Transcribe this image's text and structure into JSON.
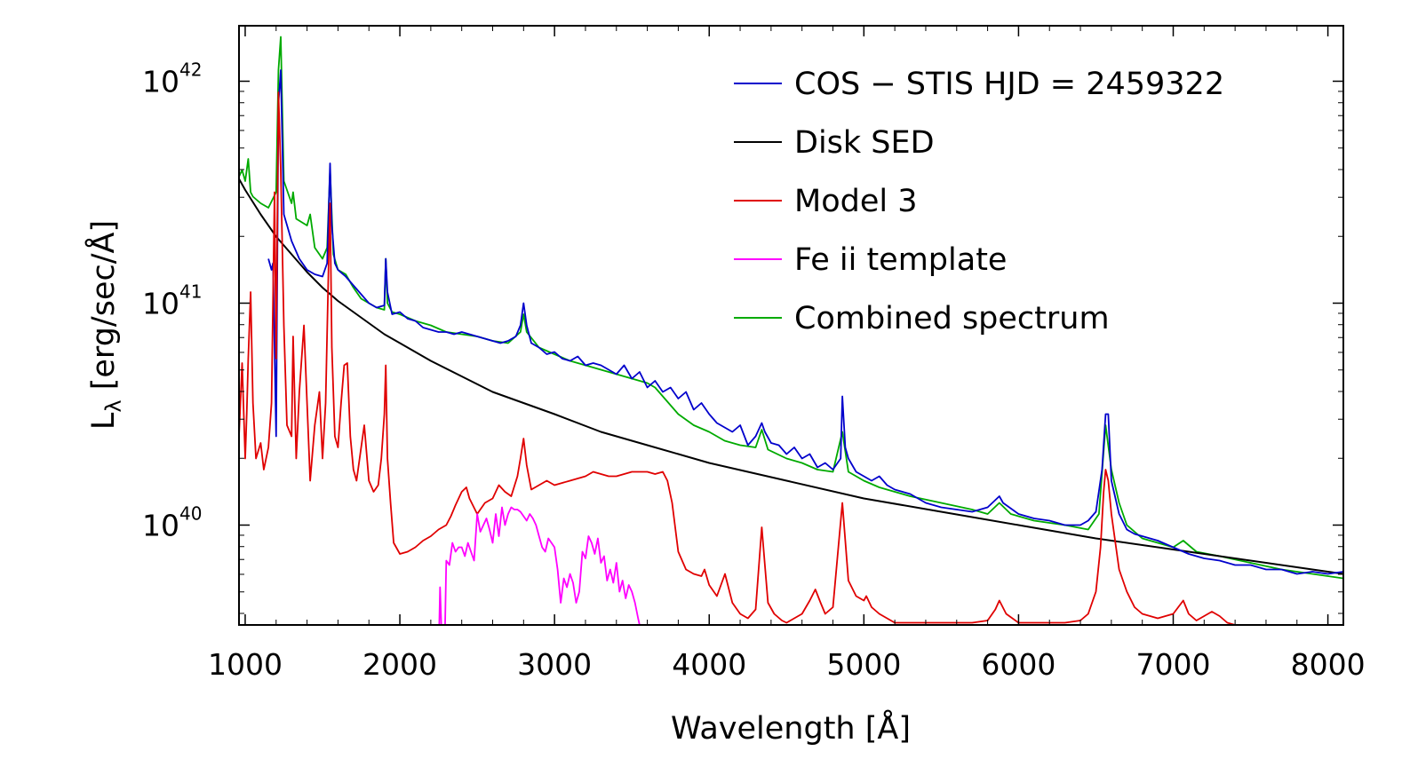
{
  "chart_data": {
    "type": "line",
    "xlabel": "Wavelength [Å]",
    "ylabel_main": "L",
    "ylabel_sub": "λ",
    "ylabel_rest": " [erg/sec/Å]",
    "xlim": [
      960,
      8100
    ],
    "ylim_log10": [
      39.55,
      42.25
    ],
    "y_scale": "log",
    "grid": false,
    "legend_position": "top-right",
    "x_ticks": [
      1000,
      2000,
      3000,
      4000,
      5000,
      6000,
      7000,
      8000
    ],
    "x_tick_labels": [
      "1000",
      "2000",
      "3000",
      "4000",
      "5000",
      "6000",
      "7000",
      "8000"
    ],
    "y_ticks": [
      {
        "value_log10": 40,
        "base": "10",
        "exp": "40"
      },
      {
        "value_log10": 41,
        "base": "10",
        "exp": "41"
      },
      {
        "value_log10": 42,
        "base": "10",
        "exp": "42"
      }
    ],
    "series": [
      {
        "name": "COS − STIS HJD = 2459322",
        "color": "#0000cc",
        "x": [
          1150,
          1170,
          1180,
          1200,
          1215,
          1230,
          1250,
          1300,
          1350,
          1400,
          1450,
          1500,
          1530,
          1549,
          1560,
          1580,
          1600,
          1650,
          1700,
          1750,
          1800,
          1850,
          1900,
          1909,
          1920,
          1950,
          2000,
          2050,
          2100,
          2150,
          2200,
          2250,
          2300,
          2350,
          2400,
          2450,
          2500,
          2550,
          2600,
          2650,
          2700,
          2750,
          2780,
          2800,
          2820,
          2850,
          2900,
          2950,
          3000,
          3050,
          3100,
          3150,
          3200,
          3250,
          3300,
          3350,
          3400,
          3450,
          3500,
          3550,
          3600,
          3650,
          3700,
          3750,
          3800,
          3850,
          3900,
          3950,
          4000,
          4050,
          4100,
          4150,
          4200,
          4250,
          4300,
          4340,
          4360,
          4400,
          4450,
          4500,
          4550,
          4600,
          4650,
          4700,
          4750,
          4800,
          4850,
          4861,
          4880,
          4900,
          4950,
          5000,
          5050,
          5100,
          5150,
          5200,
          5300,
          5400,
          5500,
          5600,
          5700,
          5800,
          5876,
          5900,
          6000,
          6100,
          6200,
          6300,
          6400,
          6450,
          6500,
          6540,
          6563,
          6580,
          6600,
          6650,
          6700,
          6750,
          6800,
          6900,
          7000,
          7100,
          7200,
          7300,
          7400,
          7500,
          7600,
          7700,
          7800,
          7900,
          8000,
          8100
        ],
        "log10_values": [
          41.2,
          41.15,
          41.18,
          40.4,
          41.9,
          42.05,
          41.4,
          41.28,
          41.2,
          41.15,
          41.13,
          41.12,
          41.18,
          41.63,
          41.35,
          41.18,
          41.15,
          41.12,
          41.08,
          41.04,
          41.0,
          40.98,
          40.99,
          41.2,
          41.05,
          40.95,
          40.96,
          40.93,
          40.92,
          40.89,
          40.88,
          40.87,
          40.87,
          40.86,
          40.87,
          40.86,
          40.85,
          40.84,
          40.83,
          40.82,
          40.83,
          40.85,
          40.9,
          41.0,
          40.9,
          40.82,
          40.8,
          40.77,
          40.78,
          40.75,
          40.74,
          40.76,
          40.72,
          40.73,
          40.72,
          40.7,
          40.68,
          40.72,
          40.66,
          40.69,
          40.62,
          40.65,
          40.6,
          40.62,
          40.57,
          40.6,
          40.52,
          40.55,
          40.5,
          40.46,
          40.44,
          40.42,
          40.45,
          40.36,
          40.4,
          40.46,
          40.42,
          40.37,
          40.36,
          40.32,
          40.35,
          40.3,
          40.32,
          40.26,
          40.28,
          40.25,
          40.3,
          40.58,
          40.35,
          40.3,
          40.24,
          40.22,
          40.2,
          40.22,
          40.18,
          40.16,
          40.14,
          40.1,
          40.08,
          40.07,
          40.06,
          40.08,
          40.13,
          40.1,
          40.05,
          40.03,
          40.02,
          40.0,
          40.0,
          40.02,
          40.06,
          40.25,
          40.5,
          40.5,
          40.2,
          40.05,
          39.98,
          39.96,
          39.95,
          39.93,
          39.9,
          39.87,
          39.85,
          39.84,
          39.82,
          39.82,
          39.8,
          39.8,
          39.78,
          39.79,
          39.78,
          39.79
        ]
      },
      {
        "name": "Disk  SED",
        "color": "#000000",
        "x": [
          960,
          1000,
          1100,
          1200,
          1300,
          1400,
          1500,
          1600,
          1700,
          1800,
          1900,
          2000,
          2200,
          2400,
          2600,
          2800,
          3000,
          3300,
          3600,
          4000,
          4500,
          5000,
          5500,
          6000,
          6500,
          7000,
          7500,
          8000,
          8100
        ],
        "log10_values": [
          41.56,
          41.51,
          41.4,
          41.3,
          41.22,
          41.14,
          41.07,
          41.01,
          40.96,
          40.91,
          40.86,
          40.82,
          40.74,
          40.67,
          40.6,
          40.55,
          40.5,
          40.42,
          40.36,
          40.28,
          40.2,
          40.12,
          40.06,
          40.0,
          39.94,
          39.89,
          39.84,
          39.79,
          39.78
        ]
      },
      {
        "name": "Model 3",
        "color": "#e00000",
        "x": [
          960,
          980,
          1000,
          1010,
          1020,
          1035,
          1050,
          1070,
          1100,
          1120,
          1150,
          1170,
          1190,
          1200,
          1215,
          1230,
          1250,
          1270,
          1300,
          1310,
          1330,
          1350,
          1380,
          1400,
          1420,
          1450,
          1480,
          1500,
          1520,
          1540,
          1549,
          1560,
          1580,
          1600,
          1620,
          1640,
          1660,
          1680,
          1700,
          1720,
          1750,
          1770,
          1800,
          1830,
          1860,
          1880,
          1900,
          1909,
          1920,
          1940,
          1960,
          2000,
          2050,
          2100,
          2150,
          2200,
          2250,
          2300,
          2330,
          2360,
          2400,
          2430,
          2450,
          2500,
          2550,
          2600,
          2640,
          2680,
          2720,
          2760,
          2780,
          2800,
          2820,
          2850,
          2900,
          2950,
          3000,
          3050,
          3100,
          3150,
          3200,
          3250,
          3300,
          3350,
          3400,
          3450,
          3500,
          3550,
          3600,
          3650,
          3700,
          3730,
          3760,
          3800,
          3850,
          3900,
          3950,
          3970,
          4000,
          4050,
          4102,
          4150,
          4200,
          4250,
          4300,
          4340,
          4380,
          4420,
          4470,
          4500,
          4550,
          4600,
          4650,
          4686,
          4720,
          4750,
          4800,
          4861,
          4900,
          4950,
          5000,
          5016,
          5050,
          5100,
          5150,
          5200,
          5300,
          5400,
          5500,
          5600,
          5700,
          5800,
          5850,
          5876,
          5920,
          6000,
          6100,
          6200,
          6300,
          6400,
          6450,
          6500,
          6530,
          6550,
          6563,
          6580,
          6600,
          6650,
          6700,
          6750,
          6800,
          6900,
          7000,
          7065,
          7100,
          7150,
          7200,
          7250,
          7300,
          7350,
          7400,
          7500,
          7600,
          7700,
          7800,
          7900,
          8000,
          8100
        ],
        "log10_values": [
          40.4,
          40.73,
          40.3,
          40.5,
          40.75,
          41.05,
          40.55,
          40.3,
          40.37,
          40.25,
          40.35,
          40.55,
          41.5,
          40.75,
          41.95,
          41.6,
          40.9,
          40.45,
          40.4,
          40.85,
          40.3,
          40.6,
          40.9,
          40.55,
          40.2,
          40.45,
          40.6,
          40.3,
          40.55,
          41.2,
          41.45,
          40.8,
          40.4,
          40.35,
          40.55,
          40.72,
          40.73,
          40.4,
          40.25,
          40.2,
          40.35,
          40.45,
          40.2,
          40.15,
          40.18,
          40.3,
          40.5,
          40.72,
          40.3,
          40.1,
          39.92,
          39.87,
          39.88,
          39.9,
          39.93,
          39.95,
          39.98,
          40.0,
          40.04,
          40.09,
          40.15,
          40.17,
          40.12,
          40.05,
          40.1,
          40.12,
          40.18,
          40.15,
          40.13,
          40.22,
          40.3,
          40.39,
          40.27,
          40.16,
          40.18,
          40.2,
          40.18,
          40.19,
          40.2,
          40.21,
          40.22,
          40.24,
          40.23,
          40.22,
          40.22,
          40.23,
          40.24,
          40.24,
          40.24,
          40.23,
          40.24,
          40.2,
          40.1,
          39.88,
          39.8,
          39.78,
          39.77,
          39.8,
          39.73,
          39.68,
          39.78,
          39.65,
          39.6,
          39.58,
          39.62,
          39.99,
          39.65,
          39.6,
          39.57,
          39.56,
          39.58,
          39.6,
          39.66,
          39.71,
          39.65,
          39.6,
          39.63,
          40.1,
          39.75,
          39.68,
          39.66,
          39.68,
          39.63,
          39.6,
          39.58,
          39.56,
          39.56,
          39.56,
          39.56,
          39.56,
          39.56,
          39.57,
          39.62,
          39.66,
          39.6,
          39.56,
          39.56,
          39.56,
          39.56,
          39.57,
          39.6,
          39.7,
          39.9,
          40.15,
          40.25,
          40.2,
          40.05,
          39.8,
          39.7,
          39.63,
          39.6,
          39.58,
          39.6,
          39.66,
          39.6,
          39.57,
          39.59,
          39.61,
          39.59,
          39.56,
          39.55,
          39.55,
          39.54,
          39.54,
          39.54,
          39.53,
          39.52,
          39.51
        ]
      },
      {
        "name": "Fe ii template",
        "color": "#ff00ff",
        "x": [
          2240,
          2250,
          2260,
          2270,
          2290,
          2300,
          2320,
          2340,
          2360,
          2380,
          2400,
          2420,
          2440,
          2460,
          2480,
          2500,
          2520,
          2540,
          2560,
          2580,
          2600,
          2620,
          2640,
          2660,
          2680,
          2700,
          2720,
          2740,
          2760,
          2780,
          2800,
          2820,
          2840,
          2860,
          2880,
          2900,
          2920,
          2940,
          2960,
          2980,
          3000,
          3020,
          3040,
          3060,
          3080,
          3100,
          3120,
          3140,
          3160,
          3180,
          3200,
          3220,
          3240,
          3260,
          3280,
          3300,
          3320,
          3340,
          3360,
          3380,
          3400,
          3420,
          3440,
          3460,
          3480,
          3500,
          3520,
          3540,
          3560,
          3580,
          3600,
          3620,
          3640,
          3660,
          3680
        ],
        "log10_values": [
          39.5,
          39.4,
          39.72,
          39.5,
          39.45,
          39.84,
          39.82,
          39.92,
          39.88,
          39.9,
          39.9,
          39.86,
          39.92,
          39.88,
          39.84,
          40.05,
          39.97,
          40.0,
          40.03,
          39.98,
          39.92,
          40.05,
          39.95,
          40.08,
          40.0,
          40.05,
          40.08,
          40.07,
          40.07,
          40.06,
          40.04,
          40.02,
          40.05,
          40.03,
          40.0,
          39.95,
          39.9,
          39.88,
          39.94,
          39.92,
          39.9,
          39.8,
          39.65,
          39.76,
          39.72,
          39.78,
          39.74,
          39.65,
          39.7,
          39.88,
          39.85,
          39.95,
          39.92,
          39.87,
          39.94,
          39.83,
          39.86,
          39.75,
          39.8,
          39.74,
          39.83,
          39.7,
          39.75,
          39.67,
          39.73,
          39.7,
          39.65,
          39.58,
          39.52,
          39.45,
          39.41,
          39.48,
          39.45,
          39.42,
          39.44
        ]
      },
      {
        "name": "Combined spectrum",
        "color": "#00aa00",
        "x": [
          960,
          980,
          1000,
          1020,
          1035,
          1050,
          1100,
          1150,
          1200,
          1215,
          1230,
          1250,
          1300,
          1310,
          1330,
          1400,
          1420,
          1450,
          1500,
          1530,
          1549,
          1570,
          1600,
          1650,
          1700,
          1750,
          1800,
          1850,
          1900,
          1909,
          1920,
          1950,
          2000,
          2100,
          2200,
          2300,
          2400,
          2500,
          2600,
          2700,
          2780,
          2800,
          2820,
          2900,
          3000,
          3100,
          3200,
          3300,
          3400,
          3500,
          3600,
          3650,
          3700,
          3800,
          3900,
          4000,
          4100,
          4200,
          4300,
          4340,
          4380,
          4500,
          4600,
          4700,
          4800,
          4861,
          4900,
          5000,
          5100,
          5200,
          5300,
          5500,
          5700,
          5800,
          5876,
          5950,
          6100,
          6300,
          6450,
          6520,
          6563,
          6600,
          6650,
          6700,
          6800,
          7000,
          7065,
          7150,
          7300,
          7500,
          7700,
          7900,
          8100
        ],
        "log10_values": [
          41.57,
          41.6,
          41.55,
          41.65,
          41.5,
          41.48,
          41.45,
          41.43,
          41.5,
          42.05,
          42.2,
          41.55,
          41.45,
          41.5,
          41.38,
          41.35,
          41.4,
          41.25,
          41.2,
          41.25,
          41.6,
          41.22,
          41.15,
          41.13,
          41.07,
          41.02,
          41.0,
          40.98,
          40.97,
          41.2,
          41.0,
          40.96,
          40.95,
          40.92,
          40.9,
          40.87,
          40.86,
          40.85,
          40.83,
          40.82,
          40.87,
          40.95,
          40.87,
          40.8,
          40.77,
          40.74,
          40.72,
          40.7,
          40.68,
          40.66,
          40.64,
          40.62,
          40.58,
          40.5,
          40.45,
          40.42,
          40.38,
          40.36,
          40.35,
          40.43,
          40.34,
          40.3,
          40.28,
          40.25,
          40.24,
          40.42,
          40.24,
          40.2,
          40.17,
          40.15,
          40.13,
          40.1,
          40.07,
          40.05,
          40.1,
          40.05,
          40.02,
          40.0,
          39.98,
          40.05,
          40.45,
          40.25,
          40.1,
          40.0,
          39.94,
          39.9,
          39.93,
          39.88,
          39.86,
          39.83,
          39.8,
          39.78,
          39.76
        ]
      }
    ]
  },
  "legend": {
    "items": [
      {
        "text": "COS − STIS HJD = 2459322",
        "color": "#0000cc"
      },
      {
        "text": "Disk  SED",
        "color": "#000000"
      },
      {
        "text": "Model 3",
        "color": "#e00000"
      },
      {
        "text": "Fe ii template",
        "color": "#ff00ff"
      },
      {
        "text": "Combined spectrum",
        "color": "#00aa00"
      }
    ]
  }
}
